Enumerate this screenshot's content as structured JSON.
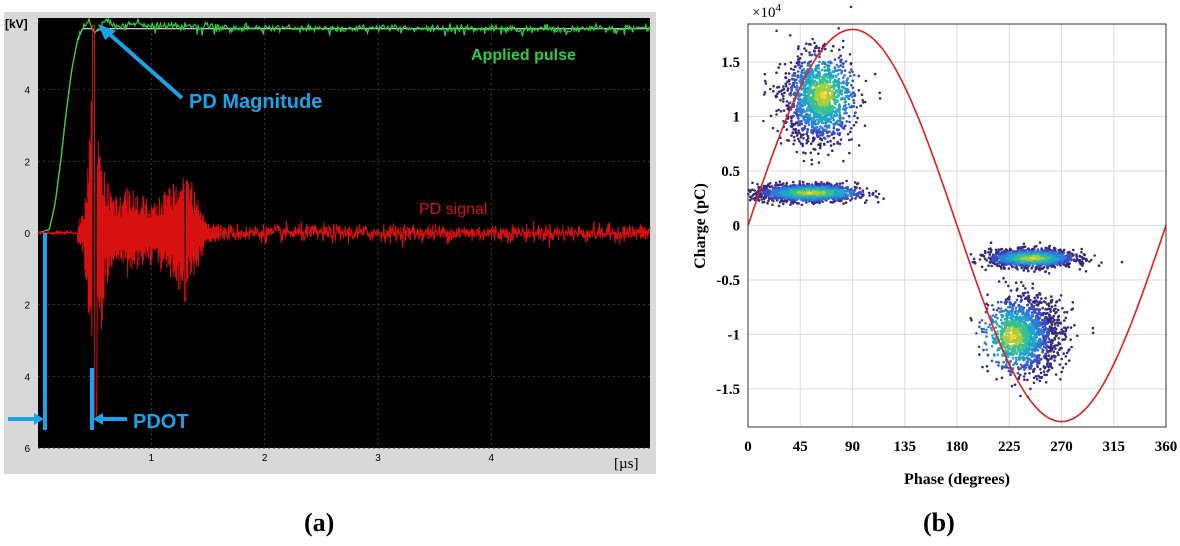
{
  "chart_data": [
    {
      "type": "line",
      "panel_label": "(a)",
      "background": "#000000",
      "frame_color": "#d8d8d8",
      "x_unit": "[µs]",
      "y_unit": "[kV]",
      "xlim": [
        0,
        5.4
      ],
      "ylim": [
        -6,
        6
      ],
      "x_ticks": [
        1,
        2,
        3,
        4
      ],
      "x_tick_labels": [
        "1",
        "2",
        "3",
        "4"
      ],
      "y_ticks": [
        4,
        2,
        0,
        -2,
        -4,
        -6
      ],
      "y_tick_labels": [
        "4",
        "2",
        "0",
        "2",
        "4",
        "6"
      ],
      "grid": true,
      "series": [
        {
          "name": "Applied pulse",
          "color": "#2ecc40",
          "x": [
            0,
            0.1,
            0.15,
            0.2,
            0.25,
            0.3,
            0.35,
            0.4,
            0.45,
            0.5,
            0.55,
            0.6,
            0.7,
            0.8,
            1.0,
            1.5,
            2.0,
            3.0,
            4.0,
            5.4
          ],
          "y": [
            0,
            0.1,
            0.8,
            2.0,
            3.4,
            4.6,
            5.4,
            5.75,
            5.9,
            5.6,
            5.7,
            5.95,
            5.75,
            5.85,
            5.8,
            5.75,
            5.72,
            5.7,
            5.7,
            5.7
          ]
        },
        {
          "name": "PD signal",
          "color": "#d81010",
          "x": [
            0,
            0.3,
            0.4,
            0.45,
            0.48,
            0.5,
            0.52,
            0.55,
            0.6,
            0.7,
            0.8,
            1.0,
            1.2,
            1.3,
            1.5,
            2.0,
            3.0,
            4.0,
            5.4
          ],
          "y": [
            0,
            0,
            0.6,
            2.5,
            5.8,
            -5.2,
            3.2,
            -3.0,
            1.5,
            -1.0,
            1.3,
            -0.9,
            1.4,
            -1.9,
            0.3,
            0.1,
            0.05,
            0.05,
            0.05
          ]
        }
      ],
      "annotations": {
        "applied_pulse": "Applied pulse",
        "pd_magnitude": "PD Magnitude",
        "pd_signal": "PD signal",
        "pdot": "PDOT"
      },
      "annotation_color": "#1aa3e8"
    },
    {
      "type": "scatter",
      "panel_label": "(b)",
      "xlabel": "Phase (degrees)",
      "ylabel": "Charge (pC)",
      "y_multiplier_label": "×10",
      "y_multiplier_exp": "4",
      "xlim": [
        0,
        360
      ],
      "ylim": [
        -1.85,
        1.85
      ],
      "x_ticks": [
        0,
        45,
        90,
        135,
        180,
        225,
        270,
        315,
        360
      ],
      "y_ticks": [
        1.5,
        1,
        0.5,
        0,
        -0.5,
        -1,
        -1.5
      ],
      "y_tick_labels": [
        "1.5",
        "1",
        "0.5",
        "0",
        "-0.5",
        "-1",
        "-1.5"
      ],
      "grid": true,
      "reference_sine": {
        "amplitude": 1.8,
        "period": 360,
        "color": "#e02020"
      },
      "clusters": [
        {
          "cx": 60,
          "cy": 1.15,
          "sx": 15,
          "sy": 0.2,
          "peak_x": 65,
          "peak_y": 1.2
        },
        {
          "cx": 50,
          "cy": 0.3,
          "sx": 22,
          "sy": 0.04,
          "peak_x": 55,
          "peak_y": 0.3
        },
        {
          "cx": 245,
          "cy": -0.3,
          "sx": 18,
          "sy": 0.04,
          "peak_x": 245,
          "peak_y": -0.3
        },
        {
          "cx": 240,
          "cy": -1.0,
          "sx": 16,
          "sy": 0.17,
          "peak_x": 228,
          "peak_y": -1.02
        }
      ]
    }
  ]
}
